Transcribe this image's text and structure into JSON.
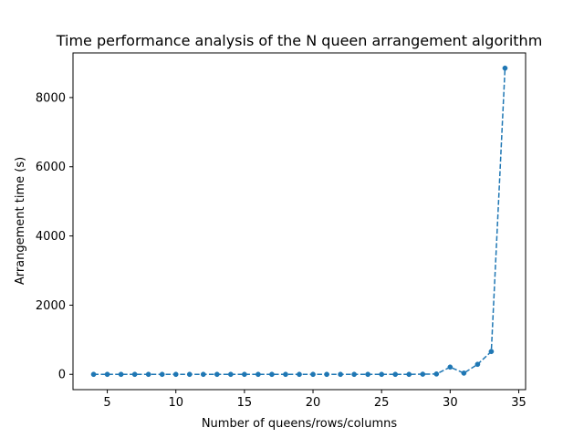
{
  "chart_data": {
    "type": "line",
    "title": "Time performance analysis of the N queen arrangement algorithm",
    "xlabel": "Number of queens/rows/columns",
    "ylabel": "Arrangement time (s)",
    "xlim": [
      2.5,
      35.5
    ],
    "ylim": [
      -442,
      9290
    ],
    "xticks": [
      5,
      10,
      15,
      20,
      25,
      30,
      35
    ],
    "yticks": [
      0,
      2000,
      4000,
      6000,
      8000
    ],
    "grid": false,
    "line_style": "dashed",
    "marker": "circle",
    "colors": {
      "series": "#1f77b4"
    },
    "x": [
      4,
      5,
      6,
      7,
      8,
      9,
      10,
      11,
      12,
      13,
      14,
      15,
      16,
      17,
      18,
      19,
      20,
      21,
      22,
      23,
      24,
      25,
      26,
      27,
      28,
      29,
      30,
      31,
      32,
      33,
      34
    ],
    "series": [
      {
        "values": [
          0,
          0,
          0,
          0,
          0,
          0,
          0,
          0,
          0,
          0,
          0,
          0,
          0,
          0,
          0,
          0,
          0,
          0,
          0,
          0,
          0,
          0,
          0,
          0,
          5,
          10,
          210,
          35,
          290,
          660,
          8850
        ]
      }
    ]
  }
}
